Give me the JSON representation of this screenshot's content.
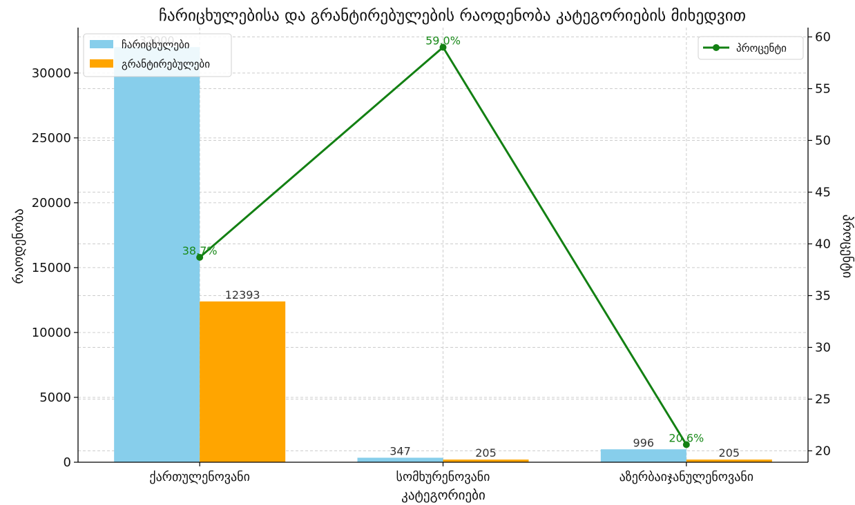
{
  "chart_data": {
    "type": "bar",
    "title": "ჩარიცხულებისა და გრანტირებულების რაოდენობა კატეგორიების მიხედვით",
    "xlabel": "კატეგორიები",
    "ylabel": "რაოდენობა",
    "y2label": "პროცენტი",
    "categories": [
      "ქართულენოვანი",
      "სომხურენოვანი",
      "აზერბაიჯანულენოვანი"
    ],
    "series": [
      {
        "name": "ჩარიცხულები",
        "color": "#87CEEB",
        "values": [
          32000,
          347,
          996
        ],
        "labels": [
          "32000",
          "347",
          "996"
        ]
      },
      {
        "name": "გრანტირებულები",
        "color": "#FFA500",
        "values": [
          12393,
          205,
          205
        ],
        "labels": [
          "12393",
          "205",
          "205"
        ]
      }
    ],
    "line_series": {
      "name": "პროცენტი",
      "color": "#138013",
      "values": [
        38.7,
        59.0,
        20.6
      ],
      "labels": [
        "38.7%",
        "59.0%",
        "20.6%"
      ]
    },
    "ylim": [
      0,
      33500
    ],
    "yticks": [
      0,
      5000,
      10000,
      15000,
      20000,
      25000,
      30000
    ],
    "y2lim": [
      18.9,
      60.9
    ],
    "y2ticks": [
      20,
      25,
      30,
      35,
      40,
      45,
      50,
      55,
      60
    ],
    "grid": true,
    "legend_left_position": "top-left",
    "legend_right_position": "top-right"
  }
}
